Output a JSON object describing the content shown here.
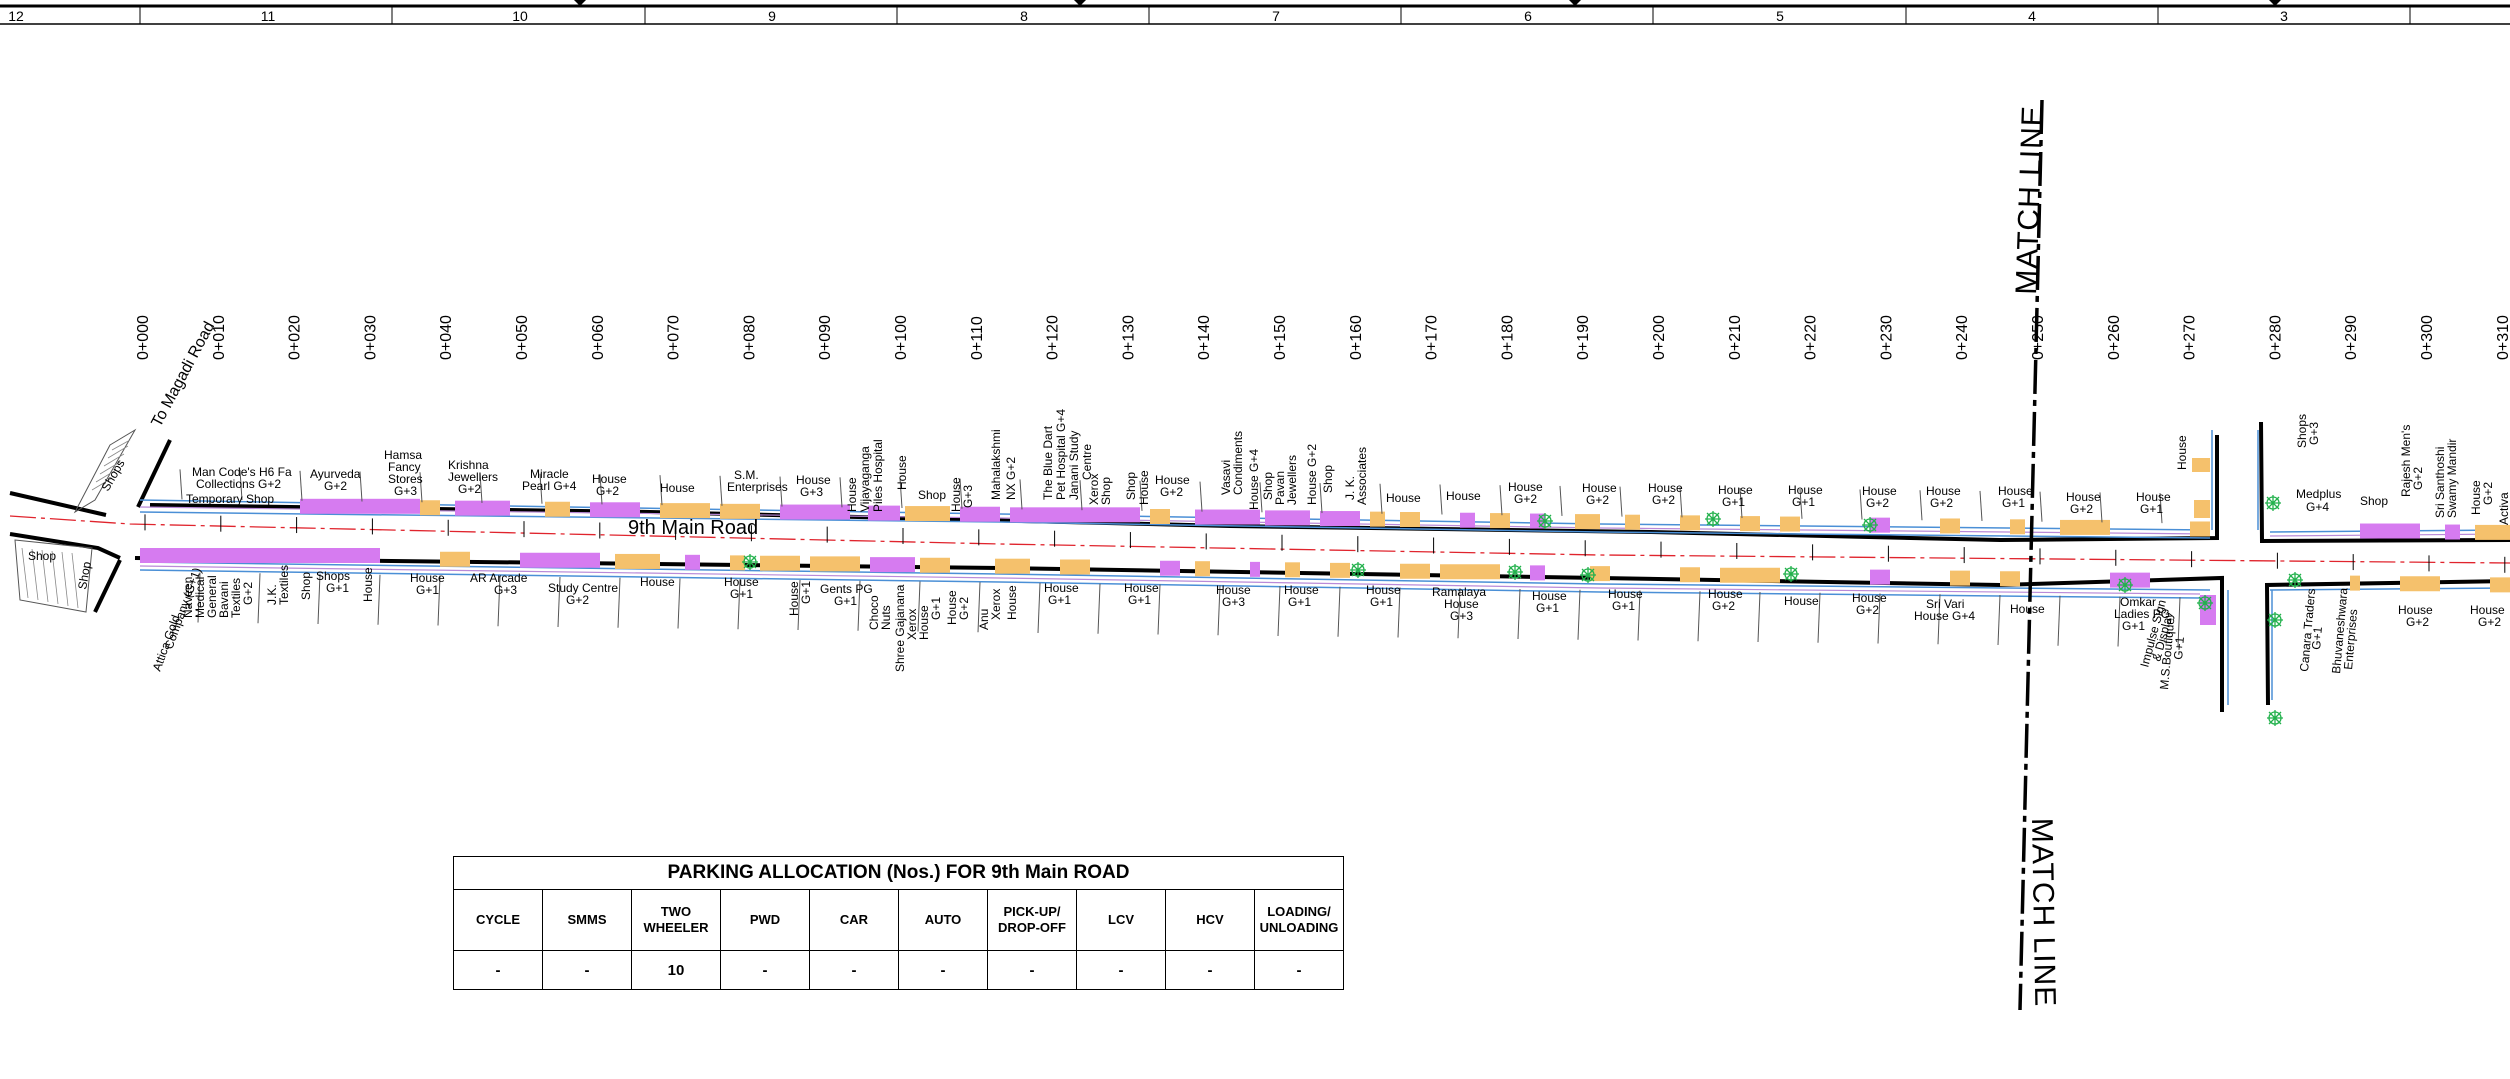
{
  "grid_numbers": [
    "12",
    "11",
    "10",
    "9",
    "8",
    "7",
    "6",
    "5",
    "4",
    "3"
  ],
  "to_road": "To  Magadi  Road",
  "road_name": "9th Main Road",
  "match_line": "MATCH LINE",
  "chainages": [
    "0+000",
    "0+010",
    "0+020",
    "0+030",
    "0+040",
    "0+050",
    "0+060",
    "0+070",
    "0+080",
    "0+090",
    "0+100",
    "0+110",
    "0+120",
    "0+130",
    "0+140",
    "0+150",
    "0+160",
    "0+170",
    "0+180",
    "0+190",
    "0+200",
    "0+210",
    "0+220",
    "0+230",
    "0+240",
    "0+250",
    "0+260",
    "0+270",
    "0+280",
    "0+290",
    "0+300",
    "0+310"
  ],
  "left_shops": [
    "Shops",
    "Shop"
  ],
  "north_labels": [
    "Man Code's H6 Fa",
    "Collections G+2",
    "Temporary Shop",
    "Ayurveda",
    "G+2",
    "Hamsa",
    "Fancy",
    "Stores",
    "G+3",
    "Krishna",
    "Jewellers",
    "G+2",
    "Miracle",
    "Pearl G+4",
    "House",
    "G+2",
    "House",
    "S.M.",
    "Enterprises",
    "House",
    "G+3",
    "House",
    "Vijayaganga",
    "Piles Hospital",
    "House",
    "Shop",
    "House",
    "G+3",
    "Mahalakshmi",
    "NX G+2",
    "The Blue Dart",
    "Pet Hospital G+4",
    "Janani Study",
    "Centre",
    "Xerox",
    "Shop",
    "Shop",
    "House",
    "House",
    "G+2",
    "Vasavi",
    "Condiments",
    "House G+4",
    "Shop",
    "Pavan",
    "Jewellers",
    "House G+2",
    "Shop",
    "J. K.",
    "Associates",
    "House",
    "House",
    "House",
    "G+2",
    "House",
    "G+2",
    "House",
    "G+2",
    "House",
    "G+1",
    "House",
    "G+1",
    "House",
    "G+2",
    "House",
    "G+2",
    "House",
    "G+1",
    "House",
    "G+2",
    "House",
    "G+1",
    "House",
    "Shops",
    "G+3",
    "Medplus",
    "G+4",
    "Shop",
    "Rajesh Men's",
    "G+2",
    "Sri Santhoshi",
    "Swamy Mandir",
    "House",
    "G+2",
    "Activa"
  ],
  "south_labels": [
    "Attica Gold",
    "Company (G+1)",
    "Naveen",
    "Medical",
    "General",
    "Bavani",
    "Textiles",
    "G+2",
    "J.K.",
    "Textiles",
    "Shop",
    "Shops",
    "G+1",
    "House",
    "House",
    "G+1",
    "AR Arcade",
    "G+3",
    "Study Centre",
    "G+2",
    "House",
    "House",
    "G+1",
    "House",
    "G+1",
    "Gents PG",
    "G+1",
    "Choco",
    "Nuts",
    "Shree Gajanana",
    "Xerox",
    "House",
    "G+1",
    "House",
    "G+2",
    "Anu",
    "Xerox",
    "House",
    "House",
    "G+1",
    "House",
    "G+1",
    "House",
    "G+3",
    "House",
    "G+1",
    "House",
    "G+1",
    "Ramalaya",
    "House",
    "G+3",
    "House",
    "G+1",
    "House",
    "G+1",
    "House",
    "G+2",
    "House",
    "House",
    "G+2",
    "Sri Vari",
    "House G+4",
    "House",
    "Omkar",
    "Ladies PG",
    "G+1",
    "Impulse Sign",
    "& Display",
    "M.S.Boutique",
    "G+1",
    "Canara Traders",
    "G+1",
    "Bhuvaneshwara",
    "Enterprises",
    "House",
    "G+2",
    "House",
    "G+2"
  ],
  "parking_table": {
    "title": "PARKING ALLOCATION (Nos.) FOR 9th Main ROAD",
    "headers": [
      "CYCLE",
      "SMMS",
      "TWO WHEELER",
      "PWD",
      "CAR",
      "AUTO",
      "PICK-UP/ DROP-OFF",
      "LCV",
      "HCV",
      "LOADING/ UNLOADING"
    ],
    "values": [
      "-",
      "-",
      "10",
      "-",
      "-",
      "-",
      "-",
      "-",
      "-",
      "-"
    ]
  },
  "colors": {
    "edge": "#000000",
    "lane_line": "#4a8fd6",
    "centerline": "#e0242d",
    "parking_magenta": "#d67bf0",
    "parking_orange": "#f5c16c",
    "tree": "#22b14c"
  }
}
